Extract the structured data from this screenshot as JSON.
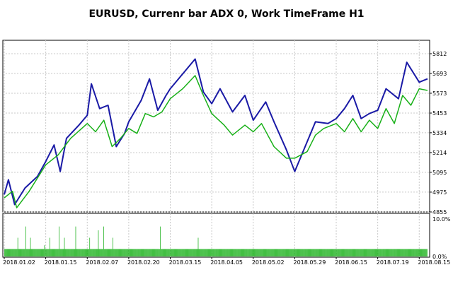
{
  "title": "EURUSD, Currenr bar ADX 0, Work TimeFrame H1",
  "colors": {
    "price_line": "#1a1aa6",
    "adx_line": "#18b018",
    "histogram": "#18b018",
    "grid": "#c8c8c8",
    "frame": "#000000"
  },
  "chart_data": [
    {
      "type": "line",
      "grid": true,
      "ylim": [
        4855,
        5812
      ],
      "ytick_labels": [
        "5812",
        "5693",
        "5573",
        "5453",
        "5334",
        "5214",
        "5095",
        "4975",
        "4855"
      ],
      "x": [
        "2018.01.02",
        "2018.01.15",
        "2018.02.07",
        "2018.02.20",
        "2018.03.15",
        "2018.04.05",
        "2018.05.02",
        "2018.05.29",
        "2018.06.15",
        "2018.07.19",
        "2018.08.15"
      ],
      "series": [
        {
          "color": "#1a1aa6",
          "points": [
            [
              0,
              4960
            ],
            [
              0.1,
              5050
            ],
            [
              0.25,
              4900
            ],
            [
              0.5,
              5000
            ],
            [
              0.8,
              5070
            ],
            [
              1,
              5160
            ],
            [
              1.2,
              5260
            ],
            [
              1.35,
              5100
            ],
            [
              1.5,
              5300
            ],
            [
              1.8,
              5380
            ],
            [
              2,
              5440
            ],
            [
              2.1,
              5630
            ],
            [
              2.3,
              5480
            ],
            [
              2.5,
              5500
            ],
            [
              2.7,
              5250
            ],
            [
              2.9,
              5330
            ],
            [
              3,
              5400
            ],
            [
              3.3,
              5530
            ],
            [
              3.5,
              5660
            ],
            [
              3.7,
              5470
            ],
            [
              3.9,
              5560
            ],
            [
              4,
              5600
            ],
            [
              4.3,
              5690
            ],
            [
              4.6,
              5780
            ],
            [
              4.8,
              5580
            ],
            [
              5,
              5510
            ],
            [
              5.2,
              5600
            ],
            [
              5.5,
              5460
            ],
            [
              5.8,
              5560
            ],
            [
              6,
              5410
            ],
            [
              6.3,
              5520
            ],
            [
              6.5,
              5400
            ],
            [
              6.8,
              5230
            ],
            [
              7,
              5100
            ],
            [
              7.3,
              5280
            ],
            [
              7.5,
              5400
            ],
            [
              7.8,
              5390
            ],
            [
              8,
              5420
            ],
            [
              8.2,
              5480
            ],
            [
              8.4,
              5560
            ],
            [
              8.6,
              5420
            ],
            [
              8.8,
              5450
            ],
            [
              9,
              5470
            ],
            [
              9.2,
              5600
            ],
            [
              9.5,
              5540
            ],
            [
              9.7,
              5760
            ],
            [
              10,
              5640
            ],
            [
              10.2,
              5660
            ]
          ]
        },
        {
          "color": "#18b018",
          "points": [
            [
              0,
              4940
            ],
            [
              0.2,
              4980
            ],
            [
              0.3,
              4880
            ],
            [
              0.6,
              4980
            ],
            [
              1,
              5140
            ],
            [
              1.3,
              5200
            ],
            [
              1.6,
              5300
            ],
            [
              2,
              5390
            ],
            [
              2.2,
              5340
            ],
            [
              2.4,
              5410
            ],
            [
              2.6,
              5250
            ],
            [
              2.8,
              5300
            ],
            [
              3,
              5360
            ],
            [
              3.2,
              5330
            ],
            [
              3.4,
              5450
            ],
            [
              3.6,
              5430
            ],
            [
              3.8,
              5460
            ],
            [
              4,
              5540
            ],
            [
              4.3,
              5600
            ],
            [
              4.6,
              5680
            ],
            [
              4.8,
              5560
            ],
            [
              5,
              5450
            ],
            [
              5.3,
              5380
            ],
            [
              5.5,
              5320
            ],
            [
              5.8,
              5380
            ],
            [
              6,
              5340
            ],
            [
              6.2,
              5390
            ],
            [
              6.5,
              5250
            ],
            [
              6.8,
              5180
            ],
            [
              7,
              5180
            ],
            [
              7.3,
              5220
            ],
            [
              7.5,
              5320
            ],
            [
              7.7,
              5360
            ],
            [
              8,
              5390
            ],
            [
              8.2,
              5340
            ],
            [
              8.4,
              5420
            ],
            [
              8.6,
              5340
            ],
            [
              8.8,
              5410
            ],
            [
              9,
              5360
            ],
            [
              9.2,
              5480
            ],
            [
              9.4,
              5390
            ],
            [
              9.6,
              5560
            ],
            [
              9.8,
              5500
            ],
            [
              10,
              5600
            ],
            [
              10.2,
              5590
            ]
          ]
        }
      ]
    },
    {
      "type": "bar",
      "ylim": [
        0,
        10
      ],
      "ytick_labels": [
        "10.0%",
        "0.0%"
      ],
      "values": [
        2,
        2,
        2,
        2,
        2,
        2,
        2,
        2,
        2,
        2,
        2,
        2,
        2,
        2,
        2,
        2,
        2,
        2,
        2,
        2,
        5,
        2,
        2,
        2,
        2,
        2,
        2,
        2,
        2,
        2,
        2,
        2,
        8,
        2,
        2,
        2,
        2,
        2,
        2,
        5,
        2,
        2,
        2,
        2,
        2,
        2,
        2,
        2,
        2,
        2,
        2,
        2,
        2,
        2,
        2,
        2,
        2,
        2,
        2,
        2,
        3,
        2,
        2,
        2,
        2,
        2,
        2,
        2,
        5,
        2,
        2,
        2,
        2,
        2,
        2,
        2,
        2,
        2,
        2,
        2,
        2,
        2,
        8,
        2,
        2,
        2,
        2,
        2,
        2,
        2,
        5,
        2,
        2,
        2,
        2,
        2,
        2,
        2,
        2,
        2,
        2,
        2,
        2,
        2,
        2,
        2,
        2,
        8,
        2,
        2,
        2,
        2,
        2,
        2,
        2,
        2,
        2,
        2,
        2,
        2,
        2,
        2,
        2,
        2,
        2,
        2,
        2,
        2,
        5,
        2,
        2,
        2,
        2,
        2,
        2,
        2,
        2,
        2,
        2,
        2,
        2,
        7,
        2,
        2,
        2,
        2,
        2,
        2,
        2,
        8,
        2,
        2,
        2,
        2,
        2,
        2,
        2,
        2,
        2,
        2,
        2,
        2,
        2,
        5,
        2,
        2,
        2,
        2,
        2,
        2,
        2,
        2,
        2,
        2,
        2,
        2,
        2,
        2,
        2,
        2,
        2,
        2,
        2,
        2,
        2,
        2,
        2,
        2,
        2,
        2,
        2,
        2,
        2,
        2,
        2,
        2,
        2,
        2,
        2,
        2,
        2,
        2,
        2,
        2,
        2,
        2,
        2,
        2,
        2,
        2,
        2,
        2,
        2,
        2,
        2,
        2,
        2,
        2,
        2,
        2,
        2,
        2,
        2,
        2,
        2,
        2,
        2,
        2,
        2,
        2,
        2,
        2,
        2,
        2,
        8,
        2,
        2,
        2,
        2,
        2,
        2,
        2,
        2,
        2,
        2,
        2,
        2,
        2,
        2,
        2,
        2,
        2,
        2,
        2,
        2,
        2,
        2,
        2,
        2,
        2,
        2,
        2,
        2,
        2,
        2,
        2,
        2,
        2,
        2,
        2,
        2,
        2,
        2,
        2,
        2,
        2,
        2,
        2,
        2,
        2,
        2,
        2,
        2,
        2,
        2,
        2,
        2,
        2,
        2,
        2,
        2,
        5,
        2,
        2,
        2,
        2,
        2,
        2,
        2,
        2,
        2,
        2,
        2,
        2,
        2,
        2,
        2,
        2,
        2,
        2,
        2,
        2,
        2,
        2,
        2,
        2,
        2,
        2,
        2,
        2,
        2,
        2,
        2,
        2,
        2,
        2,
        2,
        2,
        2,
        2,
        2,
        2,
        2,
        2,
        2,
        2,
        2,
        2,
        2,
        2,
        2,
        2,
        2,
        2,
        2,
        2,
        2,
        2,
        2,
        2,
        2,
        2,
        2,
        2,
        2,
        2,
        2,
        2,
        2,
        2,
        2,
        2,
        2,
        2,
        2,
        2,
        2,
        2,
        2,
        2,
        2,
        2,
        2,
        2,
        2,
        2,
        2,
        2,
        2,
        2,
        2,
        2,
        2,
        2,
        2,
        2,
        2,
        2,
        2,
        2,
        2,
        2,
        2,
        2,
        2,
        2,
        2,
        2,
        2,
        2,
        2,
        2,
        2,
        2,
        2,
        2,
        2,
        2,
        2,
        2,
        2,
        2,
        2,
        2,
        2,
        2,
        2,
        2,
        2,
        2,
        2,
        2,
        2,
        2,
        2,
        2,
        2,
        2,
        2,
        2,
        2,
        2,
        2,
        2,
        2,
        2,
        2,
        2,
        2,
        2,
        2,
        2,
        2,
        2,
        2,
        2,
        2,
        2,
        2,
        2,
        2,
        2,
        2,
        2,
        2,
        2,
        2,
        2,
        2,
        2,
        2,
        2,
        2,
        2,
        2,
        2,
        2,
        2,
        2,
        2,
        2,
        2,
        2,
        2,
        2,
        2,
        2,
        2,
        2,
        2,
        2,
        2,
        2,
        2,
        2,
        2,
        2,
        2,
        2,
        2,
        2,
        2,
        2,
        2,
        2,
        2,
        2,
        2,
        2,
        2,
        2,
        2,
        2,
        2,
        2,
        2,
        2,
        2,
        2,
        2,
        2,
        2,
        2,
        2,
        2,
        2,
        2,
        2,
        2,
        2,
        2,
        2,
        2,
        2,
        2,
        2,
        2,
        2,
        2,
        2,
        2,
        2,
        2,
        2,
        2,
        2,
        2,
        2,
        2,
        2,
        2,
        2,
        2,
        2,
        2,
        2,
        2,
        2,
        2,
        2,
        2,
        2,
        2,
        2,
        2,
        2,
        2,
        2,
        2,
        2,
        2,
        2,
        2,
        2,
        2,
        2,
        2,
        2,
        2,
        2,
        2,
        2,
        2,
        2,
        2,
        2,
        2,
        2,
        2,
        2,
        2,
        2,
        2,
        2,
        2,
        2,
        2,
        2,
        2,
        2,
        2,
        2,
        2,
        2,
        2,
        2,
        2,
        2,
        2,
        2,
        2,
        2,
        2,
        2,
        2,
        2,
        2,
        2,
        2,
        2,
        2,
        2,
        2,
        2,
        2,
        2,
        2,
        2,
        2,
        2,
        2,
        2,
        2,
        2,
        2,
        2,
        2,
        2,
        2,
        2,
        2,
        2,
        2,
        2,
        2,
        2
      ]
    }
  ]
}
